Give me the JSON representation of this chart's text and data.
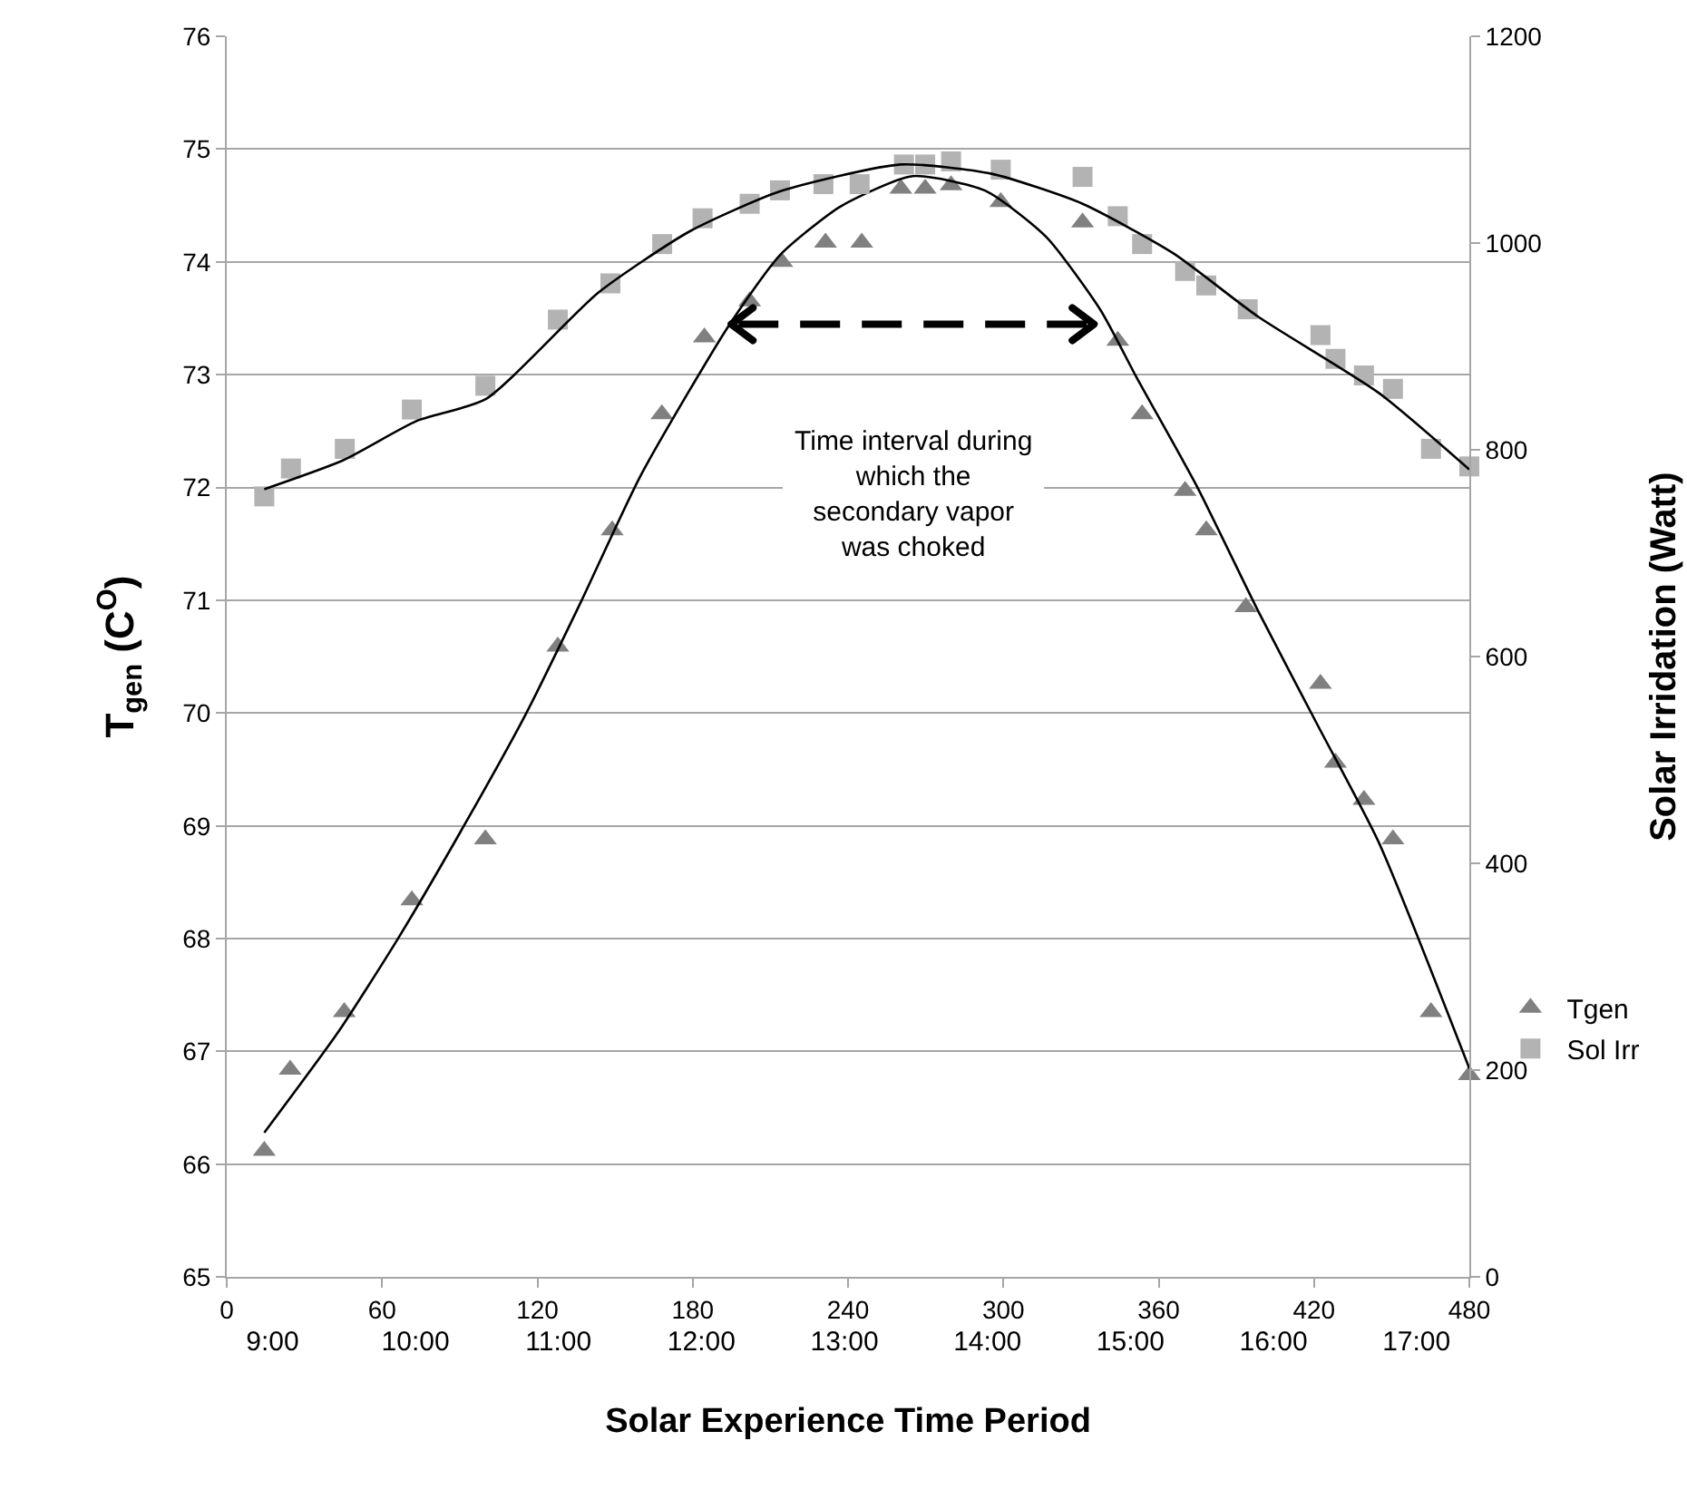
{
  "chart_data": {
    "type": "scatter",
    "xlabel": "Solar Experience Time Period",
    "ylabel": "T$_{gen}$ (C$^{O}$)",
    "y2label": "Solar Irridation (Watt)",
    "xlim": [
      0,
      480
    ],
    "xticks": [
      0,
      60,
      120,
      180,
      240,
      300,
      360,
      420,
      480
    ],
    "x2lim": [
      8.68,
      17.37
    ],
    "x2ticks": [
      {
        "value": 9,
        "label": "9:00"
      },
      {
        "value": 10,
        "label": "10:00"
      },
      {
        "value": 11,
        "label": "11:00"
      },
      {
        "value": 12,
        "label": "12:00"
      },
      {
        "value": 13,
        "label": "13:00"
      },
      {
        "value": 14,
        "label": "14:00"
      },
      {
        "value": 15,
        "label": "15:00"
      },
      {
        "value": 16,
        "label": "16:00"
      },
      {
        "value": 17,
        "label": "17:00"
      }
    ],
    "ylim": [
      65,
      76
    ],
    "yticks": [
      65,
      66,
      67,
      68,
      69,
      70,
      71,
      72,
      73,
      74,
      75,
      76
    ],
    "y2lim": [
      0,
      1200
    ],
    "y2ticks": [
      0,
      200,
      400,
      600,
      800,
      1000,
      1200
    ],
    "grid": "y",
    "legend": "right",
    "series": [
      {
        "name": "Tgen",
        "marker": "triangle",
        "color": "#808080",
        "x": [
          14.5,
          24.5,
          45.4,
          71.5,
          99.9,
          127.9,
          148.9,
          168.1,
          184.5,
          202,
          214.4,
          231.3,
          245.3,
          260.4,
          269.8,
          279.8,
          299,
          330.6,
          344.2,
          353.6,
          370.2,
          378.4,
          393.7,
          422.5,
          428.3,
          439.3,
          450.5,
          465.2,
          480
        ],
        "values": [
          66.12,
          66.84,
          67.35,
          68.34,
          68.88,
          70.59,
          71.62,
          72.65,
          73.33,
          73.65,
          74.0,
          74.17,
          74.17,
          74.65,
          74.65,
          74.68,
          74.53,
          74.35,
          73.3,
          72.65,
          71.97,
          71.62,
          70.94,
          70.26,
          69.56,
          69.23,
          68.88,
          67.35,
          66.79
        ]
      },
      {
        "name": "Sol Irr",
        "marker": "square",
        "color": "#b3b3b3",
        "axis": "y2",
        "x": [
          14.5,
          24.8,
          45.6,
          71.5,
          99.9,
          127.9,
          148.2,
          168.2,
          183.8,
          202,
          213.7,
          230.5,
          244.5,
          261.6,
          269.8,
          279.8,
          299,
          330.6,
          344.2,
          353.6,
          370.2,
          378.4,
          394.4,
          422.5,
          428.3,
          439.3,
          450.5,
          465.2,
          480
        ],
        "values": [
          755,
          782,
          801,
          839,
          862,
          926,
          961,
          999,
          1024,
          1038,
          1051,
          1057,
          1057,
          1076,
          1076,
          1079,
          1071,
          1064,
          1026,
          999,
          973,
          959,
          936,
          911,
          888,
          872,
          859,
          801,
          784
        ]
      },
      {
        "type": "line",
        "marker": "none",
        "color": "#000000",
        "x": [
          14.5,
          43,
          66.4,
          92.1,
          115.5,
          136.5,
          160,
          193.8,
          213.7,
          237,
          264.9,
          293.1,
          316.6,
          337.6,
          351.6,
          375,
          398.3,
          421.7,
          445.1,
          480
        ],
        "values": [
          66.28,
          67.17,
          68.01,
          69.02,
          69.99,
          70.97,
          72.11,
          73.43,
          74.06,
          74.49,
          74.76,
          74.63,
          74.22,
          73.57,
          72.97,
          72.0,
          70.91,
          69.88,
          68.85,
          66.85
        ]
      },
      {
        "type": "line",
        "marker": "none",
        "color": "#000000",
        "axis": "y2",
        "x": [
          14.5,
          45,
          73.4,
          100,
          143.5,
          178.6,
          213.7,
          260.4,
          295.5,
          330.6,
          365.7,
          398.3,
          445.1,
          480
        ],
        "values": [
          762,
          790,
          828,
          849,
          952,
          1011,
          1050,
          1076,
          1067,
          1038,
          990,
          929,
          855,
          781
        ]
      }
    ],
    "annotations": [
      "Time interval during\nwhich the\nsecondary vapor\nwas choked"
    ]
  }
}
